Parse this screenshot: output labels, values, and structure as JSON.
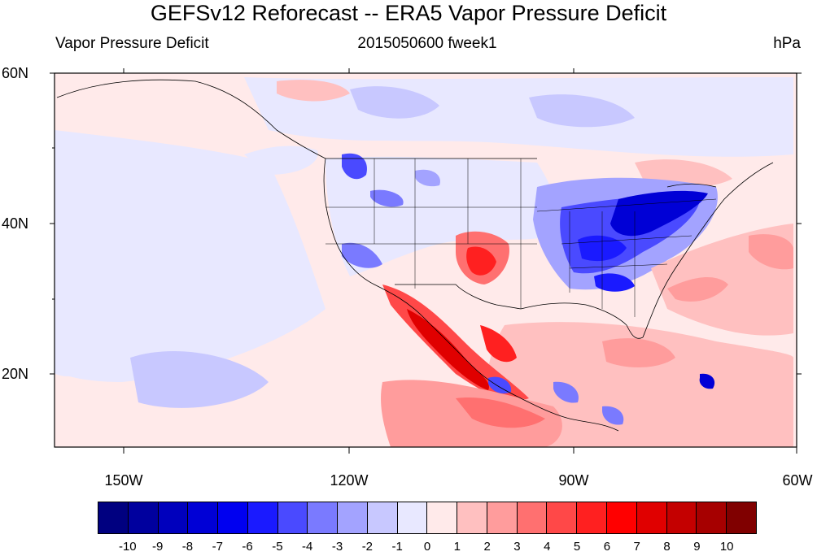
{
  "title": "GEFSv12 Reforecast -- ERA5 Vapor Pressure Deficit",
  "subtitle_left": "Vapor Pressure Deficit",
  "subtitle_center": "2015050600 fweek1",
  "subtitle_right": "hPa",
  "lat_labels": [
    "60N",
    "40N",
    "20N"
  ],
  "lon_labels": [
    "150W",
    "120W",
    "90W",
    "60W"
  ],
  "colorbar": {
    "colors": [
      "#000080",
      "#00009e",
      "#0000bd",
      "#0000d6",
      "#0000f0",
      "#1a1aff",
      "#4a4aff",
      "#7a7aff",
      "#a3a3ff",
      "#c8c8ff",
      "#e8e8ff",
      "#ffeaea",
      "#ffc0c0",
      "#ff9c9c",
      "#ff7070",
      "#ff4848",
      "#ff2020",
      "#ff0000",
      "#e00000",
      "#c40000",
      "#a60000",
      "#800000"
    ],
    "labels": [
      "-10",
      "-9",
      "-8",
      "-7",
      "-6",
      "-5",
      "-4",
      "-3",
      "-2",
      "-1",
      "0",
      "1",
      "2",
      "3",
      "4",
      "5",
      "6",
      "7",
      "8",
      "9",
      "10"
    ]
  }
}
